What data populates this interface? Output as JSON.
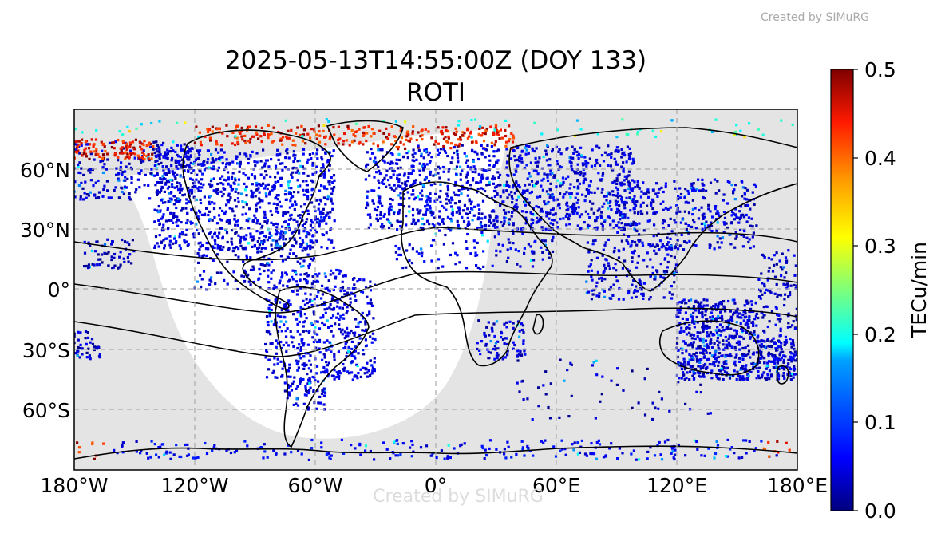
{
  "credit_top": "Created by SIMuRG",
  "credit_watermark": "Created by SIMuRG",
  "title_line1": "2025-05-13T14:55:00Z (DOY 133)",
  "title_line2": "ROTI",
  "lon_ticks": [
    "180°W",
    "120°W",
    "60°W",
    "0°",
    "60°E",
    "120°E",
    "180°E"
  ],
  "lat_ticks": [
    "60°N",
    "30°N",
    "0°",
    "30°S",
    "60°S"
  ],
  "colorbar": {
    "label": "TECu/min",
    "ticks": [
      "0.0",
      "0.1",
      "0.2",
      "0.3",
      "0.4",
      "0.5"
    ],
    "min": 0.0,
    "max": 0.5,
    "colormap": "jet"
  },
  "map": {
    "projection": "PlateCarree",
    "lon_range": [
      -180,
      180
    ],
    "lat_range": [
      -90,
      90
    ],
    "gridlines": "dashed",
    "night_shading_color": "#e4e4e4",
    "value_hotspots": [
      {
        "lon_range": [
          -180,
          -140
        ],
        "lat_range": [
          65,
          75
        ],
        "level": "high"
      },
      {
        "lon_range": [
          -120,
          40
        ],
        "lat_range": [
          70,
          82
        ],
        "level": "high"
      },
      {
        "lon_range": [
          -180,
          -160
        ],
        "lat_range": [
          -85,
          -75
        ],
        "level": "high"
      },
      {
        "lon_range": [
          160,
          180
        ],
        "lat_range": [
          -85,
          -75
        ],
        "level": "high"
      }
    ]
  }
}
